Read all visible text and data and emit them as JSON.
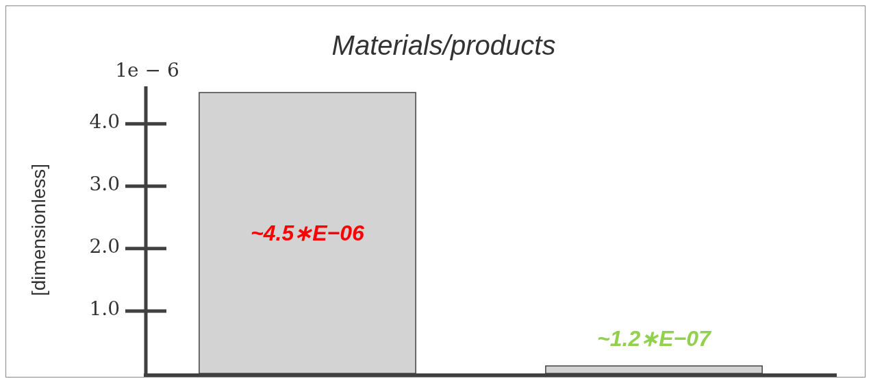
{
  "chart_data": {
    "type": "bar",
    "title": "Materials/products",
    "ylabel": "[dimensionless]",
    "categories": [
      null,
      null
    ],
    "values": [
      4.5,
      0.12
    ],
    "color": "#d3d3d3",
    "value_labels": [
      "~4.5∗E−06",
      "~1.2∗E−07"
    ],
    "ylim": [
      0,
      4.6
    ],
    "yticks": [
      {
        "value": 1,
        "label": "1.0"
      },
      {
        "value": 2,
        "label": "2.0"
      },
      {
        "value": 3,
        "label": "3.0"
      },
      {
        "value": 4,
        "label": "4.0"
      }
    ],
    "annotations": [
      "1e − 6"
    ]
  }
}
